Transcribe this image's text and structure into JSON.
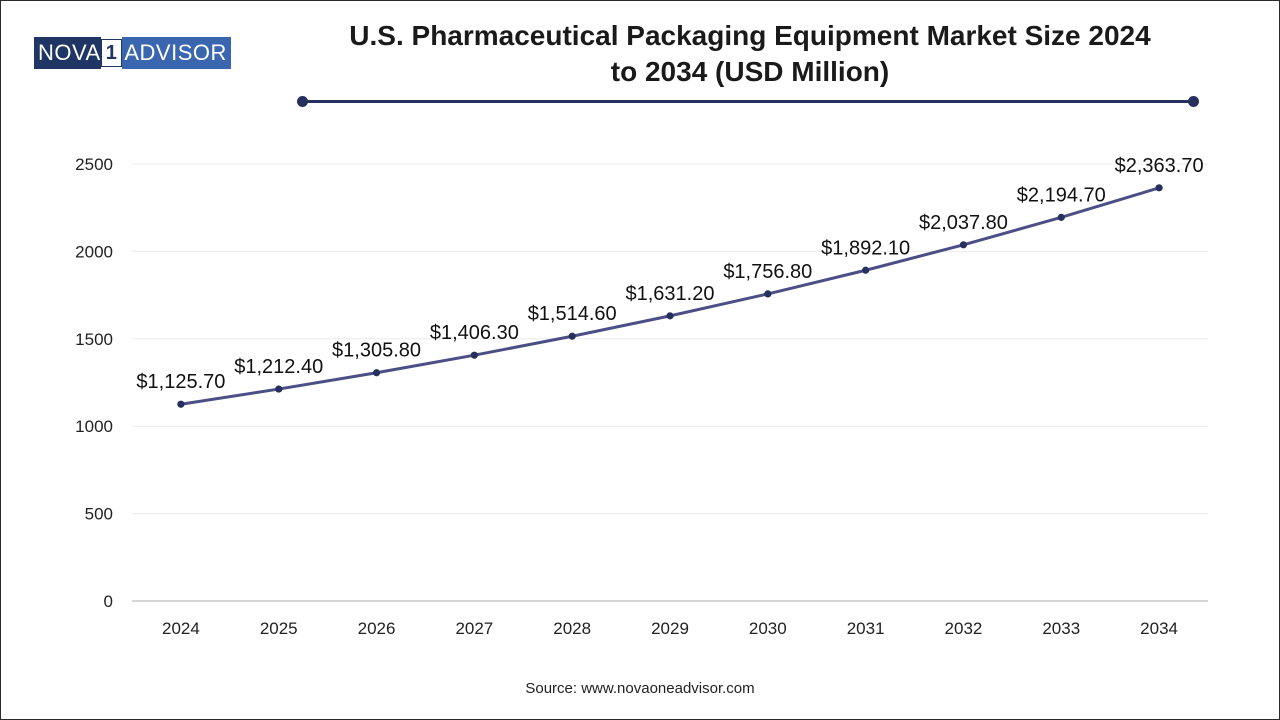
{
  "brand": {
    "logo_left": "NOVA",
    "logo_num": "1",
    "logo_right": "ADVISOR",
    "navy": "#1f3564",
    "blue": "#3a66b0"
  },
  "header": {
    "title_line1": "U.S. Pharmaceutical Packaging Equipment Market Size 2024",
    "title_line2": "to 2034 (USD Million)"
  },
  "footer": {
    "source": "Source: www.novaoneadvisor.com"
  },
  "chart_data": {
    "type": "line",
    "title": "U.S. Pharmaceutical Packaging Equipment Market Size 2024 to 2034 (USD Million)",
    "xlabel": "",
    "ylabel": "",
    "categories": [
      "2024",
      "2025",
      "2026",
      "2027",
      "2028",
      "2029",
      "2030",
      "2031",
      "2032",
      "2033",
      "2034"
    ],
    "series": [
      {
        "name": "Market Size (USD Million)",
        "values": [
          1125.7,
          1212.4,
          1305.8,
          1406.3,
          1514.6,
          1631.2,
          1756.8,
          1892.1,
          2037.8,
          2194.7,
          2363.7
        ],
        "labels": [
          "$1,125.70",
          "$1,212.40",
          "$1,305.80",
          "$1,406.30",
          "$1,514.60",
          "$1,631.20",
          "$1,756.80",
          "$1,892.10",
          "$2,037.80",
          "$2,194.70",
          "$2,363.70"
        ],
        "color": "#4b4f86"
      }
    ],
    "ylim": [
      0,
      2500
    ],
    "yticks": [
      0,
      500,
      1000,
      1500,
      2000,
      2500
    ],
    "grid": true,
    "legend": "none"
  }
}
